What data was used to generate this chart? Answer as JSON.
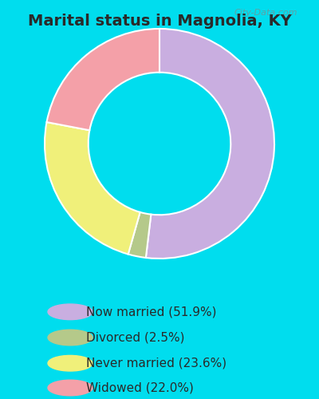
{
  "title": "Marital status in Magnolia, KY",
  "title_fontsize": 14,
  "title_color": "#2a2a2a",
  "chart_bg": "#dff0e4",
  "legend_bg": "#00ddee",
  "slices": [
    {
      "label": "Now married (51.9%)",
      "value": 51.9,
      "color": "#c9aee0"
    },
    {
      "label": "Divorced (2.5%)",
      "value": 2.5,
      "color": "#b5c98a"
    },
    {
      "label": "Never married (23.6%)",
      "value": 23.6,
      "color": "#f0f07a"
    },
    {
      "label": "Widowed (22.0%)",
      "value": 22.0,
      "color": "#f4a0a8"
    }
  ],
  "donut_width": 0.38,
  "watermark": "City-Data.com",
  "legend_fontsize": 11,
  "legend_text_color": "#2a2a2a",
  "marker_size": 12
}
